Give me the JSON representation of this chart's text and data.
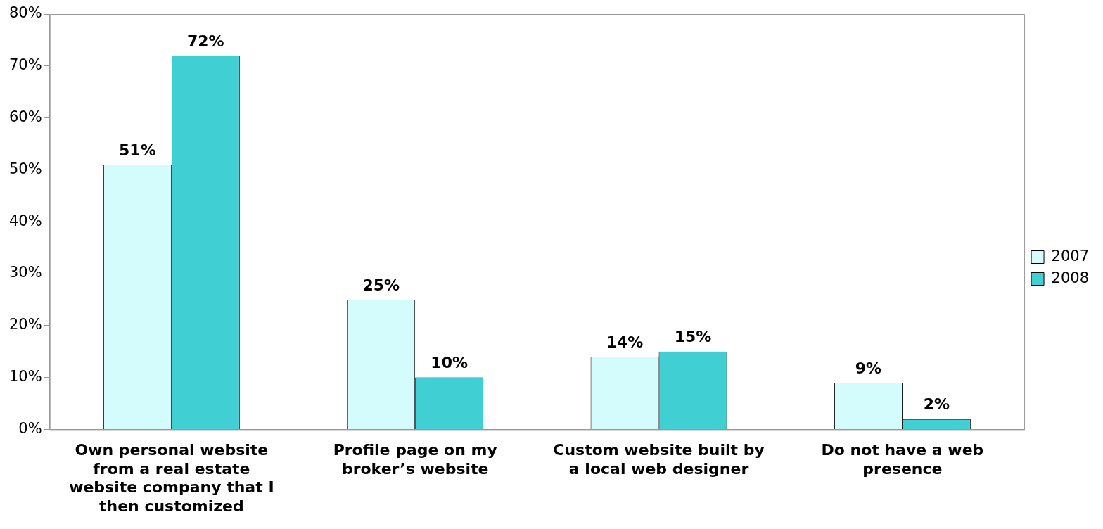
{
  "chart_data": {
    "type": "bar",
    "categories": [
      "Own personal website from a real estate website company that I then customized",
      "Profile page on my broker’s website",
      "Custom website built by a local web designer",
      "Do not have a web presence"
    ],
    "series": [
      {
        "name": "2007",
        "color": "#d4fcfc",
        "values": [
          51,
          25,
          14,
          9
        ],
        "value_labels": [
          "51%",
          "25%",
          "14%",
          "9%"
        ]
      },
      {
        "name": "2008",
        "color": "#40d0d4",
        "values": [
          72,
          10,
          15,
          2
        ],
        "value_labels": [
          "72%",
          "10%",
          "15%",
          "2%"
        ]
      }
    ],
    "ylim": [
      0,
      80
    ],
    "yticks": [
      {
        "value": 0,
        "label": "0%"
      },
      {
        "value": 10,
        "label": "10%"
      },
      {
        "value": 20,
        "label": "20%"
      },
      {
        "value": 30,
        "label": "30%"
      },
      {
        "value": 40,
        "label": "40%"
      },
      {
        "value": 50,
        "label": "50%"
      },
      {
        "value": 60,
        "label": "60%"
      },
      {
        "value": 70,
        "label": "70%"
      },
      {
        "value": 80,
        "label": "80%"
      }
    ],
    "grid": false,
    "legend": "right"
  }
}
